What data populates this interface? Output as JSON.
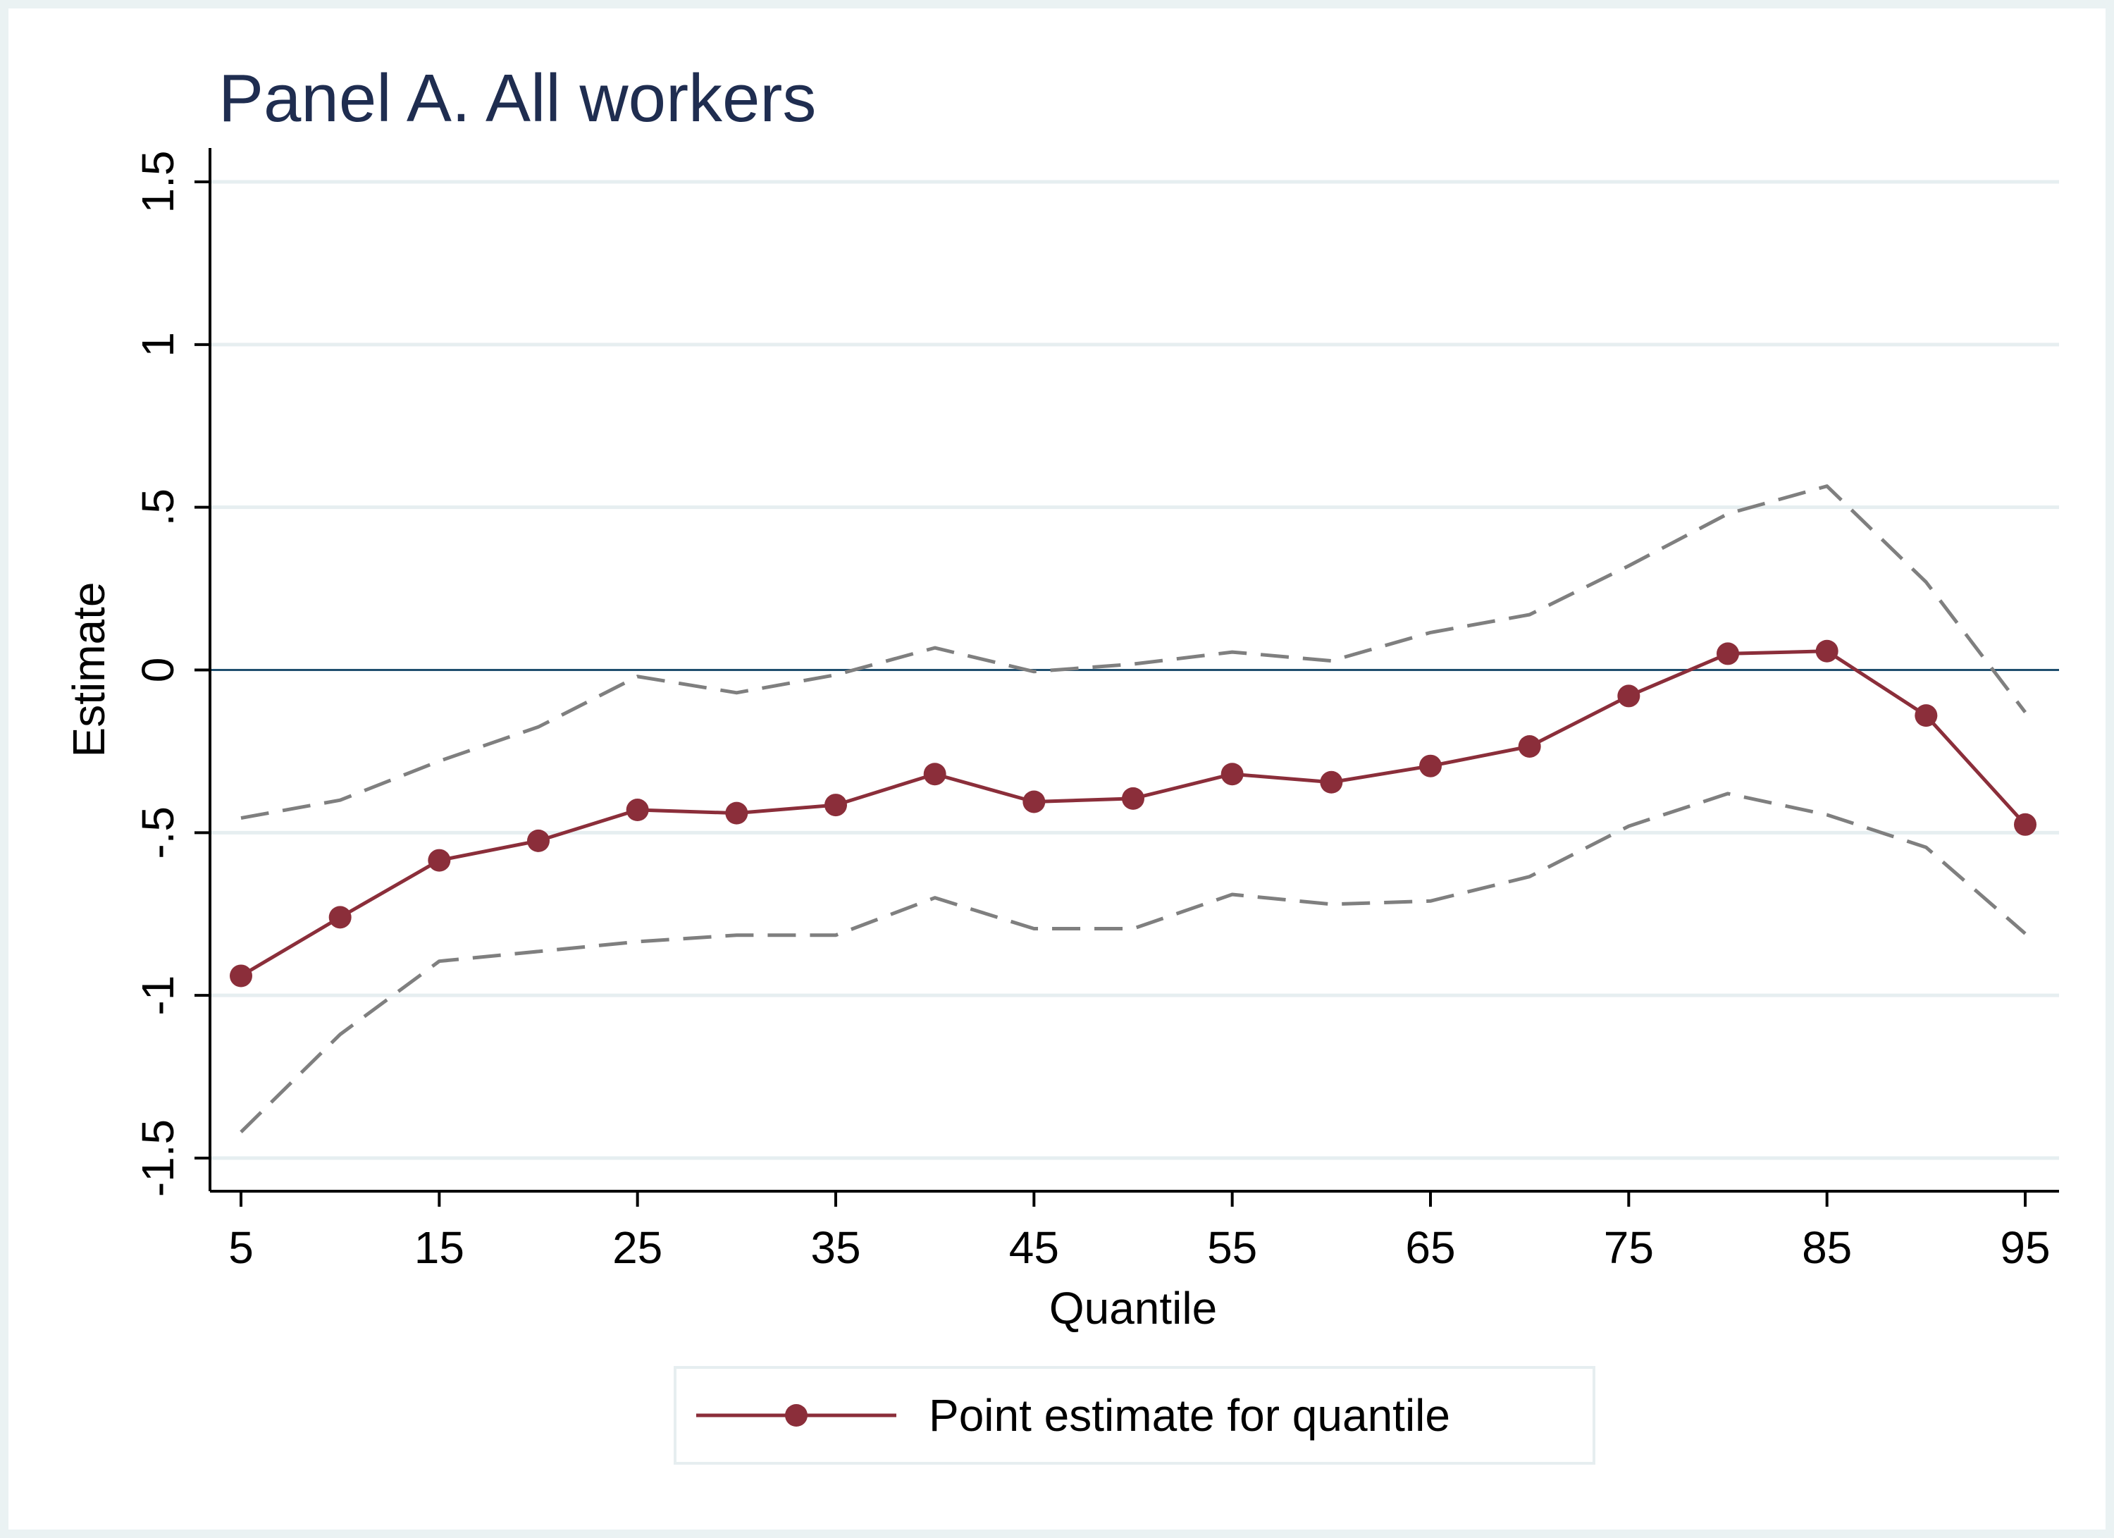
{
  "chart_data": {
    "type": "line",
    "title": "Panel A. All workers",
    "xlabel": "Quantile",
    "ylabel": "Estimate",
    "xlim": [
      5,
      95
    ],
    "ylim": [
      -1.5,
      1.5
    ],
    "xticks": [
      5,
      15,
      25,
      35,
      45,
      55,
      65,
      75,
      85,
      95
    ],
    "yticks": [
      -1.5,
      -1,
      -0.5,
      0,
      0.5,
      1,
      1.5
    ],
    "yticklabels": [
      "-1.5",
      "-1",
      "-.5",
      "0",
      ".5",
      "1",
      "1.5"
    ],
    "reference_line": 0,
    "grid": true,
    "legend_position": "bottom",
    "x": [
      5,
      10,
      15,
      20,
      25,
      30,
      35,
      40,
      45,
      50,
      55,
      60,
      65,
      70,
      75,
      80,
      85,
      90,
      95
    ],
    "series": [
      {
        "name": "Point estimate for quantile",
        "style": "solid-markers",
        "color": "#8b2e3a",
        "values": [
          -0.94,
          -0.76,
          -0.585,
          -0.525,
          -0.43,
          -0.44,
          -0.415,
          -0.32,
          -0.405,
          -0.395,
          -0.32,
          -0.345,
          -0.295,
          -0.235,
          -0.08,
          0.05,
          0.058,
          -0.14,
          -0.475
        ]
      },
      {
        "style": "dashed",
        "color": "#7f7f7f",
        "values": [
          -0.455,
          -0.4,
          -0.28,
          -0.175,
          -0.02,
          -0.07,
          -0.015,
          0.068,
          -0.005,
          0.018,
          0.055,
          0.028,
          0.115,
          0.17,
          0.32,
          0.48,
          0.565,
          0.27,
          -0.13
        ]
      },
      {
        "style": "dashed",
        "color": "#7f7f7f",
        "values": [
          -1.42,
          -1.12,
          -0.895,
          -0.865,
          -0.835,
          -0.815,
          -0.815,
          -0.7,
          -0.795,
          -0.795,
          -0.69,
          -0.72,
          -0.71,
          -0.635,
          -0.48,
          -0.38,
          -0.445,
          -0.545,
          -0.81
        ]
      }
    ]
  },
  "colors": {
    "frame": "#eaf2f3",
    "gridline": "#e6eef0",
    "zero_line": "#1f4e6e",
    "title": "#1f2d50"
  }
}
